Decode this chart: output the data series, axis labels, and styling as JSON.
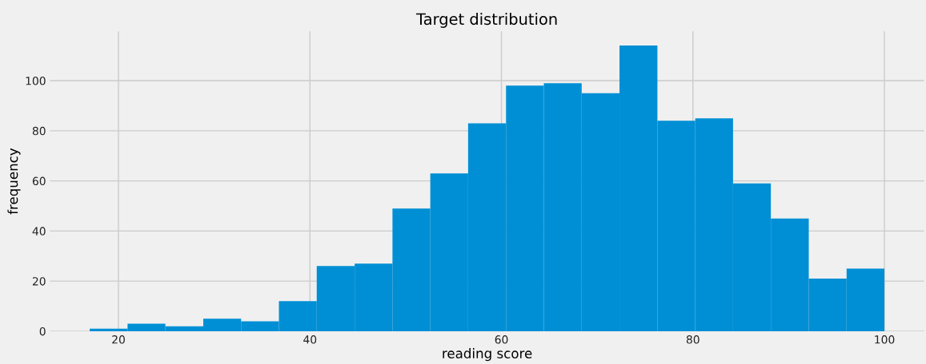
{
  "chart_data": {
    "type": "histogram",
    "title": "Target distribution",
    "xlabel": "reading score",
    "ylabel": "frequency",
    "bins": [
      17,
      20.95,
      24.9,
      28.86,
      32.81,
      36.76,
      40.71,
      44.67,
      48.62,
      52.57,
      56.52,
      60.48,
      64.43,
      68.38,
      72.33,
      76.29,
      80.24,
      84.19,
      88.14,
      92.1,
      96.05,
      100
    ],
    "values": [
      1,
      3,
      2,
      5,
      4,
      12,
      26,
      27,
      49,
      63,
      83,
      98,
      99,
      95,
      114,
      84,
      85,
      59,
      45,
      21,
      25
    ],
    "color": "#008fd5",
    "xlim": [
      12.85,
      104.15
    ],
    "ylim": [
      0,
      119.7
    ],
    "xticks": [
      20,
      40,
      60,
      80,
      100
    ],
    "yticks": [
      0,
      20,
      40,
      60,
      80,
      100
    ],
    "grid": true
  }
}
